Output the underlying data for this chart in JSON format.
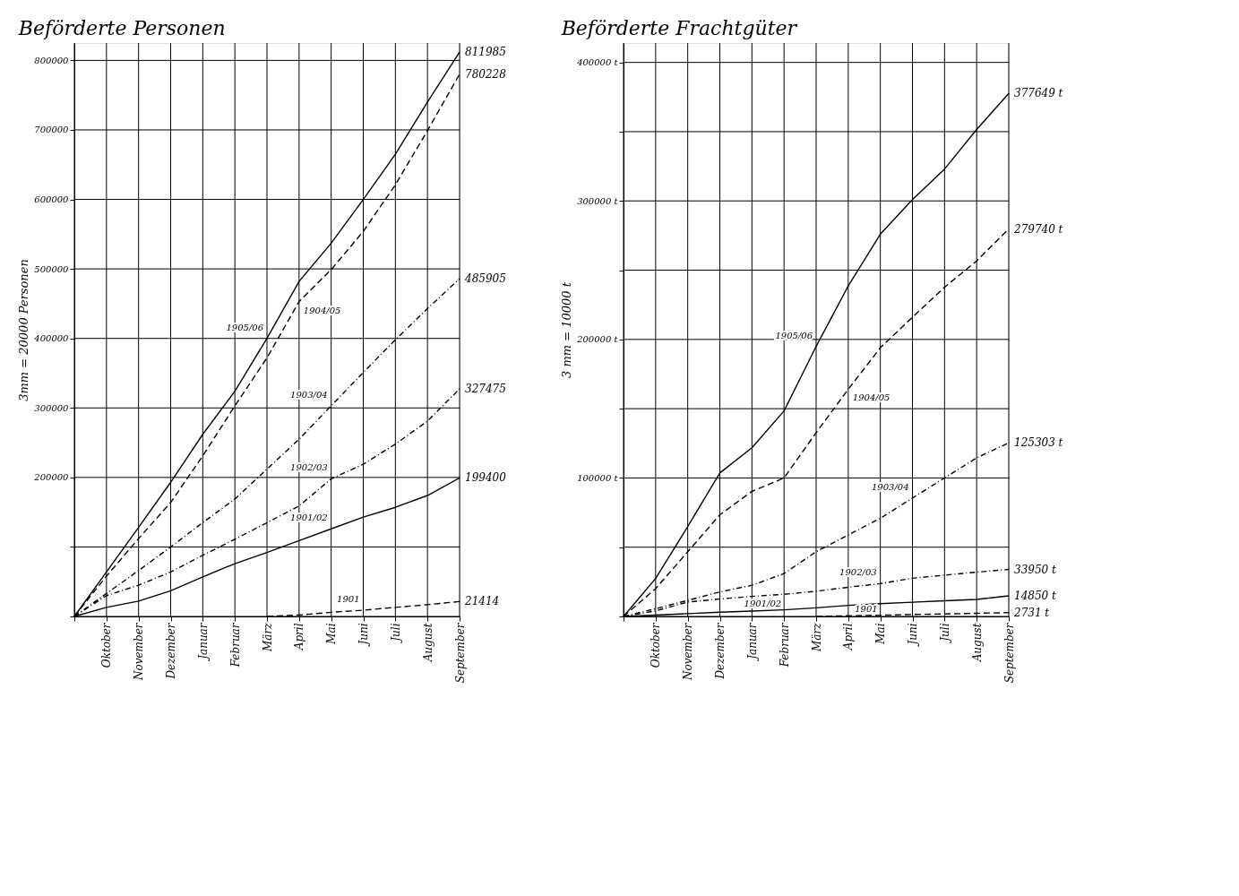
{
  "chart_data": [
    {
      "type": "line",
      "title": "Beförderte Personen",
      "ylabel": "3mm = 20000 Personen",
      "categories": [
        null,
        "Oktober",
        "November",
        "Dezember",
        "Januar",
        "Februar",
        "März",
        "April",
        "Mai",
        "Juni",
        "Juli",
        "August",
        "September"
      ],
      "ylim": [
        0,
        825000
      ],
      "yticks": [
        {
          "value": 0,
          "label": null
        },
        {
          "value": 100000,
          "label": null
        },
        200000,
        300000,
        400000,
        500000,
        600000,
        700000,
        800000
      ],
      "grid": true,
      "legend": false,
      "series": [
        {
          "name": "1905/06",
          "color": "#000000",
          "line_style": "solid",
          "values": [
            0,
            64000,
            128000,
            193000,
            262000,
            324000,
            400000,
            482000,
            537000,
            600000,
            665000,
            740000,
            811985
          ],
          "value_labels": [
            null,
            null,
            null,
            null,
            null,
            null,
            null,
            null,
            null,
            null,
            null,
            null,
            "811985"
          ]
        },
        {
          "name": "1904/05",
          "color": "#000000",
          "line_style": "dashed",
          "values": [
            0,
            58000,
            112000,
            164000,
            231000,
            303000,
            372000,
            453000,
            499000,
            554000,
            621000,
            699000,
            780228
          ],
          "value_labels": [
            null,
            null,
            null,
            null,
            null,
            null,
            null,
            null,
            null,
            null,
            null,
            null,
            "780228"
          ]
        },
        {
          "name": "1903/04",
          "color": "#000000",
          "line_style": "dotted",
          "values": [
            0,
            33000,
            66000,
            100000,
            135000,
            169000,
            212000,
            255000,
            303000,
            351000,
            398000,
            443000,
            485905
          ],
          "value_labels": [
            null,
            null,
            null,
            null,
            null,
            null,
            null,
            null,
            null,
            null,
            null,
            null,
            "485905"
          ]
        },
        {
          "name": "1902/03",
          "color": "#000000",
          "line_style": "dotted",
          "values": [
            0,
            30000,
            45000,
            64000,
            88000,
            111000,
            135000,
            159000,
            198000,
            219000,
            248000,
            281000,
            327475
          ],
          "value_labels": [
            null,
            null,
            null,
            null,
            null,
            null,
            null,
            null,
            null,
            null,
            null,
            null,
            "327475"
          ]
        },
        {
          "name": "1901/02",
          "color": "#000000",
          "line_style": "solid",
          "values": [
            0,
            13000,
            22000,
            37000,
            57000,
            76000,
            92000,
            109000,
            126000,
            143000,
            157000,
            174000,
            199400
          ],
          "value_labels": [
            null,
            null,
            null,
            null,
            null,
            null,
            null,
            null,
            null,
            null,
            null,
            null,
            "199400"
          ]
        },
        {
          "name": "1901",
          "color": "#000000",
          "line_style": "dashed",
          "values": [
            null,
            null,
            null,
            null,
            null,
            null,
            0,
            2000,
            6000,
            9000,
            13000,
            17000,
            21414
          ],
          "value_labels": [
            null,
            null,
            null,
            null,
            null,
            null,
            null,
            null,
            null,
            null,
            null,
            null,
            "21414"
          ]
        }
      ]
    },
    {
      "type": "line",
      "title": "Beförderte Frachtgüter",
      "ylabel": "3 mm = 10000 t",
      "categories": [
        null,
        "Oktober",
        "November",
        "Dezember",
        "Januar",
        "Februar",
        "März",
        "April",
        "Mai",
        "Juni",
        "Juli",
        "August",
        "September"
      ],
      "ylim": [
        0,
        414000
      ],
      "yticks": [
        {
          "value": 0,
          "label": null
        },
        {
          "value": 50000,
          "label": null
        },
        {
          "value": 100000,
          "label": "100000 t"
        },
        {
          "value": 150000,
          "label": null
        },
        {
          "value": 200000,
          "label": "200000 t"
        },
        {
          "value": 250000,
          "label": null
        },
        {
          "value": 300000,
          "label": "300000 t"
        },
        {
          "value": 350000,
          "label": null
        },
        {
          "value": 400000,
          "label": "400000 t"
        }
      ],
      "grid": true,
      "legend": false,
      "series": [
        {
          "name": "1905/06",
          "color": "#000000",
          "line_style": "solid",
          "values": [
            0,
            27400,
            64900,
            103600,
            121800,
            148400,
            195000,
            238600,
            276000,
            301000,
            323000,
            351600,
            377649
          ],
          "value_labels": [
            null,
            null,
            null,
            null,
            null,
            null,
            null,
            null,
            null,
            null,
            null,
            null,
            "377649 t"
          ]
        },
        {
          "name": "1904/05",
          "color": "#000000",
          "line_style": "dashed",
          "values": [
            0,
            20100,
            46700,
            73400,
            90300,
            100000,
            132700,
            164000,
            194000,
            216000,
            237700,
            256700,
            279740
          ],
          "value_labels": [
            null,
            null,
            null,
            null,
            null,
            null,
            null,
            null,
            null,
            null,
            null,
            null,
            "279740 t"
          ]
        },
        {
          "name": "1903/04",
          "color": "#000000",
          "line_style": "dotted",
          "values": [
            0,
            5600,
            11600,
            17700,
            22500,
            31000,
            46700,
            58800,
            70900,
            85500,
            100000,
            114500,
            125303
          ],
          "value_labels": [
            null,
            null,
            null,
            null,
            null,
            null,
            null,
            null,
            null,
            null,
            null,
            null,
            "125303 t"
          ]
        },
        {
          "name": "1902/03",
          "color": "#000000",
          "line_style": "dotted",
          "values": [
            0,
            4000,
            10400,
            12600,
            14500,
            16000,
            18200,
            21100,
            23700,
            27600,
            29800,
            32000,
            33950
          ],
          "value_labels": [
            null,
            null,
            null,
            null,
            null,
            null,
            null,
            null,
            null,
            null,
            null,
            null,
            "33950 t"
          ]
        },
        {
          "name": "1901/02",
          "color": "#000000",
          "line_style": "solid",
          "values": [
            0,
            1000,
            2000,
            3100,
            3900,
            4800,
            6200,
            8000,
            9200,
            10300,
            11300,
            12300,
            14850
          ],
          "value_labels": [
            null,
            null,
            null,
            null,
            null,
            null,
            null,
            null,
            null,
            null,
            null,
            null,
            "14850 t"
          ]
        },
        {
          "name": "1901",
          "color": "#000000",
          "line_style": "dashed",
          "values": [
            null,
            null,
            null,
            null,
            null,
            null,
            0,
            500,
            900,
            1400,
            1800,
            2300,
            2731
          ],
          "value_labels": [
            null,
            null,
            null,
            null,
            null,
            null,
            null,
            null,
            null,
            null,
            null,
            null,
            "2731 t"
          ]
        }
      ]
    }
  ]
}
